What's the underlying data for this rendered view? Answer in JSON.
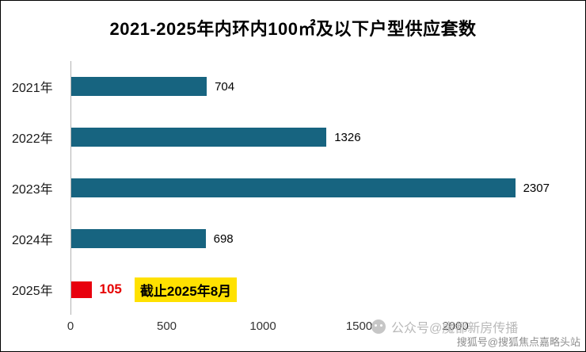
{
  "chart_data": {
    "type": "bar",
    "orientation": "horizontal",
    "title": "2021-2025年内环内100㎡及以下户型供应套数",
    "categories": [
      "2021年",
      "2022年",
      "2023年",
      "2024年",
      "2025年"
    ],
    "values": [
      704,
      1326,
      2307,
      698,
      105
    ],
    "xticks": [
      0,
      500,
      1000,
      1500,
      2000
    ],
    "xlim": [
      0,
      2600
    ],
    "xlabel": "",
    "ylabel": "",
    "grid": "off",
    "legend": "none",
    "bar_color": "#176480",
    "highlight_index": 4,
    "highlight_color": "#e8000d",
    "annotation": "截止2025年8月",
    "annotation_bg": "#ffe100"
  },
  "watermarks": {
    "center": "公众号@魔都新房传播",
    "corner": "搜狐号@搜狐焦点嘉略头站"
  }
}
